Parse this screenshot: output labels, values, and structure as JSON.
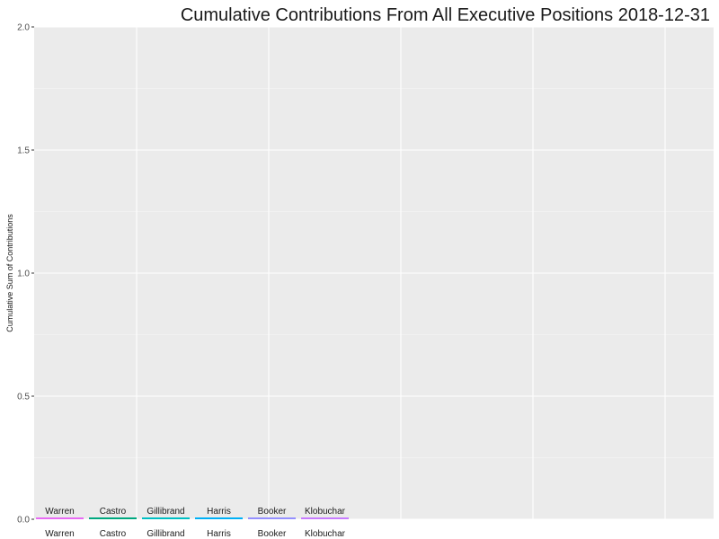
{
  "chart_data": {
    "type": "bar",
    "title": "Cumulative Contributions From  All Executive Positions    2018-12-31",
    "xlabel": "",
    "ylabel": "Cumulative Sum of Contributions",
    "ylim": [
      0,
      2
    ],
    "yticks": [
      "0.0",
      "0.5",
      "1.0",
      "1.5",
      "2.0"
    ],
    "categories": [
      "Warren",
      "Castro",
      "Gillibrand",
      "Harris",
      "Booker",
      "Klobuchar"
    ],
    "values": [
      0,
      0,
      0,
      0,
      0,
      0
    ],
    "colors": [
      "#E76BF3",
      "#00A87F",
      "#00BFC4",
      "#00B0F6",
      "#9590FF",
      "#C77CFF"
    ],
    "grid": true,
    "legend": "none"
  }
}
